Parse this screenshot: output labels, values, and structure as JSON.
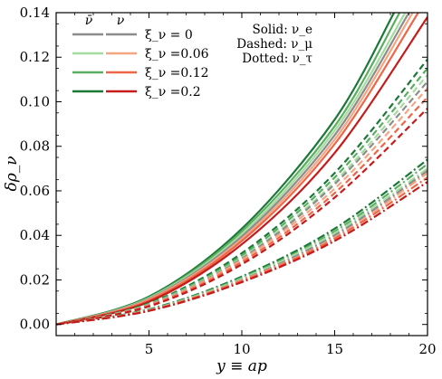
{
  "chart_data": {
    "type": "line",
    "xlabel": "y ≡ ap",
    "ylabel": "δρ_ν",
    "xlim": [
      0,
      20
    ],
    "ylim": [
      -0.005,
      0.14
    ],
    "xticks": [
      5,
      10,
      15,
      20
    ],
    "yticks": [
      0.0,
      0.02,
      0.04,
      0.06,
      0.08,
      0.1,
      0.12,
      0.14
    ],
    "ytick_labels": [
      "0.00",
      "0.02",
      "0.04",
      "0.06",
      "0.08",
      "0.10",
      "0.12",
      "0.14"
    ],
    "xtick_labels": [
      "5",
      "10",
      "15",
      "20"
    ],
    "grid": false,
    "legend": {
      "placement": "top-left",
      "col_headers": [
        "ν̄",
        "ν"
      ],
      "rows": [
        {
          "label": "ξ_ν = 0",
          "nubar_color": "#8c8c8c",
          "nu_color": "#8c8c8c"
        },
        {
          "label": "ξ_ν =0.06",
          "nubar_color": "#a6dba0",
          "nu_color": "#f4a582"
        },
        {
          "label": "ξ_ν =0.12",
          "nubar_color": "#5aae61",
          "nu_color": "#ef6548"
        },
        {
          "label": "ξ_ν =0.2",
          "nubar_color": "#1b7837",
          "nu_color": "#c51b1b"
        }
      ]
    },
    "style_note": [
      "Solid: ν_e",
      "Dashed: ν_μ",
      "Dotted: ν_τ"
    ],
    "series": [
      {
        "flavor": "nu_e",
        "variant": "nubar",
        "xi": 0.2,
        "color": "#1b7837",
        "dash": "solid",
        "x": [
          0,
          5,
          10,
          15,
          18.2
        ],
        "y": [
          0,
          0.0125,
          0.043,
          0.092,
          0.14
        ]
      },
      {
        "flavor": "nu_e",
        "variant": "nubar",
        "xi": 0.12,
        "color": "#5aae61",
        "dash": "solid",
        "x": [
          0,
          5,
          10,
          15,
          18.5
        ],
        "y": [
          0,
          0.0121,
          0.0418,
          0.089,
          0.14
        ]
      },
      {
        "flavor": "nu_e",
        "variant": "nubar",
        "xi": 0.06,
        "color": "#a6dba0",
        "dash": "solid",
        "x": [
          0,
          5,
          10,
          15,
          18.8
        ],
        "y": [
          0,
          0.0118,
          0.0405,
          0.087,
          0.14
        ]
      },
      {
        "flavor": "nu_e",
        "variant": "both",
        "xi": 0,
        "color": "#8c8c8c",
        "dash": "solid",
        "x": [
          0,
          5,
          10,
          15,
          19.0
        ],
        "y": [
          0,
          0.0115,
          0.0395,
          0.085,
          0.14
        ]
      },
      {
        "flavor": "nu_e",
        "variant": "nu",
        "xi": 0.06,
        "color": "#f4a582",
        "dash": "solid",
        "x": [
          0,
          5,
          10,
          15,
          19.2
        ],
        "y": [
          0,
          0.0112,
          0.0385,
          0.083,
          0.14
        ]
      },
      {
        "flavor": "nu_e",
        "variant": "nu",
        "xi": 0.12,
        "color": "#ef6548",
        "dash": "solid",
        "x": [
          0,
          5,
          10,
          15,
          19.5
        ],
        "y": [
          0,
          0.0108,
          0.0375,
          0.081,
          0.14
        ]
      },
      {
        "flavor": "nu_e",
        "variant": "nu",
        "xi": 0.2,
        "color": "#c51b1b",
        "dash": "solid",
        "x": [
          0,
          5,
          10,
          15,
          20
        ],
        "y": [
          0,
          0.0102,
          0.036,
          0.077,
          0.138
        ]
      },
      {
        "flavor": "nu_mu",
        "variant": "nubar",
        "xi": 0.2,
        "color": "#1b7837",
        "dash": "dashed",
        "x": [
          0,
          5,
          10,
          15,
          20
        ],
        "y": [
          0,
          0.0095,
          0.032,
          0.068,
          0.119
        ]
      },
      {
        "flavor": "nu_mu",
        "variant": "nubar",
        "xi": 0.12,
        "color": "#5aae61",
        "dash": "dashed",
        "x": [
          0,
          5,
          10,
          15,
          20
        ],
        "y": [
          0,
          0.0092,
          0.031,
          0.066,
          0.115
        ]
      },
      {
        "flavor": "nu_mu",
        "variant": "nubar",
        "xi": 0.06,
        "color": "#a6dba0",
        "dash": "dashed",
        "x": [
          0,
          5,
          10,
          15,
          20
        ],
        "y": [
          0,
          0.009,
          0.03,
          0.064,
          0.112
        ]
      },
      {
        "flavor": "nu_mu",
        "variant": "both",
        "xi": 0,
        "color": "#8c8c8c",
        "dash": "dashed",
        "x": [
          0,
          5,
          10,
          15,
          20
        ],
        "y": [
          0,
          0.0088,
          0.0295,
          0.063,
          0.109
        ]
      },
      {
        "flavor": "nu_mu",
        "variant": "nu",
        "xi": 0.06,
        "color": "#f4a582",
        "dash": "dashed",
        "x": [
          0,
          5,
          10,
          15,
          20
        ],
        "y": [
          0,
          0.0086,
          0.029,
          0.061,
          0.106
        ]
      },
      {
        "flavor": "nu_mu",
        "variant": "nu",
        "xi": 0.12,
        "color": "#ef6548",
        "dash": "dashed",
        "x": [
          0,
          5,
          10,
          15,
          20
        ],
        "y": [
          0,
          0.0084,
          0.028,
          0.059,
          0.102
        ]
      },
      {
        "flavor": "nu_mu",
        "variant": "nu",
        "xi": 0.2,
        "color": "#c51b1b",
        "dash": "dashed",
        "x": [
          0,
          5,
          10,
          15,
          20
        ],
        "y": [
          0,
          0.0081,
          0.027,
          0.057,
          0.097
        ]
      },
      {
        "flavor": "nu_tau",
        "variant": "nubar",
        "xi": 0.2,
        "color": "#1b7837",
        "dash": "dashdot",
        "x": [
          0,
          5,
          10,
          15,
          20
        ],
        "y": [
          0,
          0.0068,
          0.0215,
          0.043,
          0.074
        ]
      },
      {
        "flavor": "nu_tau",
        "variant": "nubar",
        "xi": 0.12,
        "color": "#5aae61",
        "dash": "dashdot",
        "x": [
          0,
          5,
          10,
          15,
          20
        ],
        "y": [
          0,
          0.0066,
          0.021,
          0.0418,
          0.072
        ]
      },
      {
        "flavor": "nu_tau",
        "variant": "nubar",
        "xi": 0.06,
        "color": "#a6dba0",
        "dash": "dashdot",
        "x": [
          0,
          5,
          10,
          15,
          20
        ],
        "y": [
          0,
          0.0065,
          0.0205,
          0.041,
          0.07
        ]
      },
      {
        "flavor": "nu_tau",
        "variant": "both",
        "xi": 0,
        "color": "#8c8c8c",
        "dash": "dashdot",
        "x": [
          0,
          5,
          10,
          15,
          20
        ],
        "y": [
          0,
          0.0064,
          0.02,
          0.04,
          0.069
        ]
      },
      {
        "flavor": "nu_tau",
        "variant": "nu",
        "xi": 0.06,
        "color": "#f4a582",
        "dash": "dashdot",
        "x": [
          0,
          5,
          10,
          15,
          20
        ],
        "y": [
          0,
          0.0063,
          0.0198,
          0.039,
          0.068
        ]
      },
      {
        "flavor": "nu_tau",
        "variant": "nu",
        "xi": 0.12,
        "color": "#ef6548",
        "dash": "dashdot",
        "x": [
          0,
          5,
          10,
          15,
          20
        ],
        "y": [
          0,
          0.0062,
          0.0195,
          0.0385,
          0.066
        ]
      },
      {
        "flavor": "nu_tau",
        "variant": "nu",
        "xi": 0.2,
        "color": "#c51b1b",
        "dash": "dashdot",
        "x": [
          0,
          5,
          10,
          15,
          20
        ],
        "y": [
          0,
          0.0061,
          0.019,
          0.0375,
          0.064
        ]
      }
    ]
  }
}
